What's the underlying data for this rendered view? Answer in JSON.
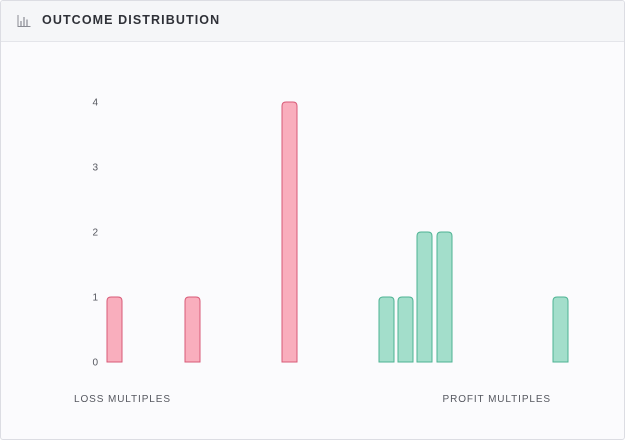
{
  "header": {
    "title": "OUTCOME DISTRIBUTION",
    "icon": "bar-chart-icon"
  },
  "colors": {
    "loss_fill": "#f9aebd",
    "loss_stroke": "#d85a77",
    "profit_fill": "#a3decb",
    "profit_stroke": "#4db393"
  },
  "chart_data": {
    "type": "bar",
    "title": "OUTCOME DISTRIBUTION",
    "xlabel": "",
    "ylabel": "",
    "ylim": [
      0,
      4
    ],
    "y_ticks": [
      "0",
      "1",
      "2",
      "3",
      "4"
    ],
    "grid": false,
    "group_labels": {
      "loss": "LOSS MULTIPLES",
      "profit": "PROFIT MULTIPLES"
    },
    "bars": [
      {
        "group": "loss",
        "value": 1
      },
      {
        "group": "loss",
        "value": 1
      },
      {
        "group": "loss",
        "value": 4
      },
      {
        "group": "profit",
        "value": 1
      },
      {
        "group": "profit",
        "value": 1
      },
      {
        "group": "profit",
        "value": 2
      },
      {
        "group": "profit",
        "value": 2
      },
      {
        "group": "profit",
        "value": 1
      }
    ]
  }
}
